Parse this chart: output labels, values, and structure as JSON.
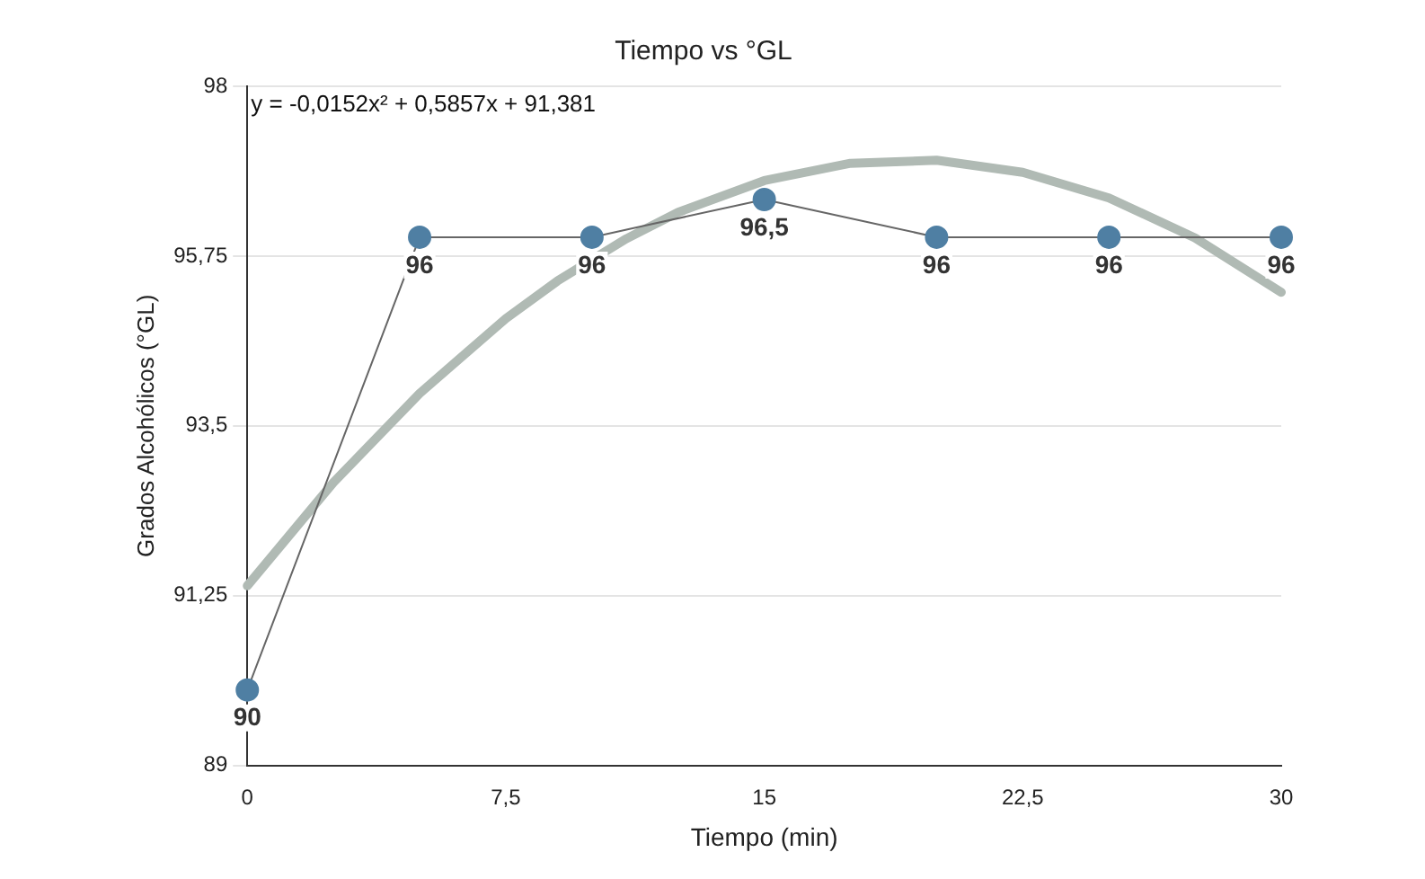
{
  "chart_data": {
    "type": "line",
    "title": "Tiempo vs °GL",
    "xlabel": "Tiempo (min)",
    "ylabel": "Grados Alcohólicos (°GL)",
    "xlim": [
      0,
      30
    ],
    "xticks": [
      0,
      {
        "value": 7.5,
        "label": "7,5"
      },
      15,
      {
        "value": 22.5,
        "label": "22,5"
      },
      30
    ],
    "ylim": [
      89,
      98
    ],
    "yticks": [
      89,
      {
        "value": 91.25,
        "label": "91,25"
      },
      {
        "value": 93.5,
        "label": "93,5"
      },
      {
        "value": 95.75,
        "label": "95,75"
      },
      98
    ],
    "grid": "y",
    "legend": false,
    "series": [
      {
        "type": "line",
        "color": "#b0bab4",
        "marker": "none",
        "x": [
          0,
          2.5,
          5,
          7.5,
          9,
          11,
          12.5,
          15,
          17.5,
          20,
          22.5,
          25,
          27.5,
          30
        ],
        "values": [
          91.38,
          92.75,
          93.93,
          94.92,
          95.42,
          95.98,
          96.33,
          96.75,
          96.98,
          97.02,
          96.86,
          96.52,
          95.99,
          95.27
        ]
      },
      {
        "type": "line",
        "color": "#4f7fa3",
        "marker": "circle",
        "x": [
          0,
          5,
          10,
          15,
          20,
          25,
          30
        ],
        "values": [
          90,
          96,
          96,
          96.5,
          96,
          96,
          96
        ],
        "value_labels": [
          "90",
          "96",
          "96",
          "96,5",
          "96",
          "96",
          "96"
        ]
      }
    ],
    "annotations": [
      "y = -0,0152x² + 0,5857x + 91,381"
    ]
  }
}
